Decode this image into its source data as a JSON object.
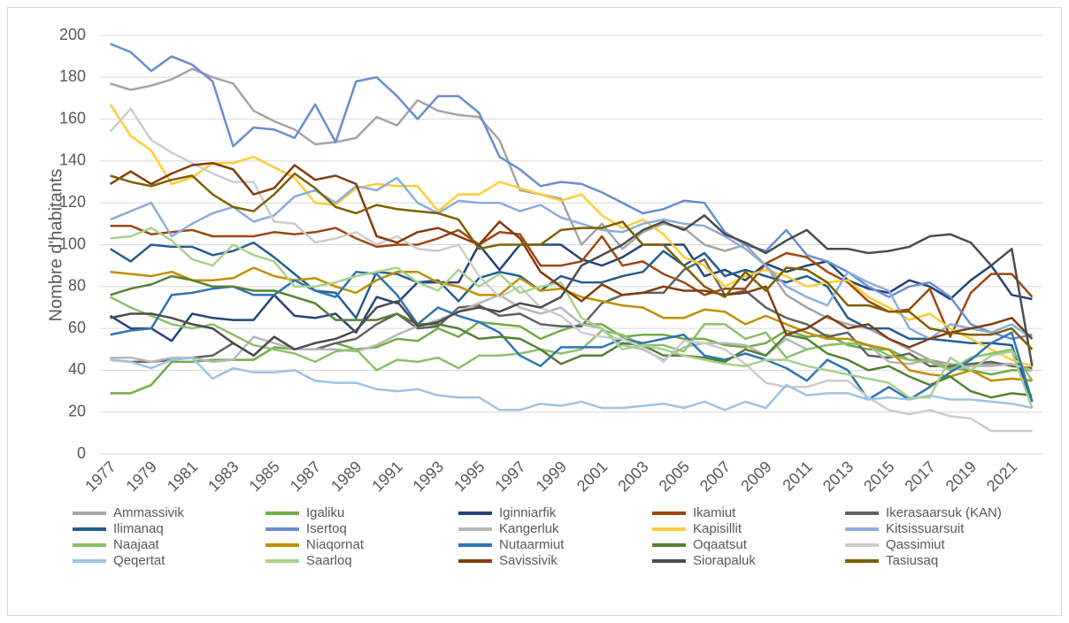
{
  "chart_data": {
    "type": "line",
    "y_label": "Nombre d'habitants",
    "categories": [
      1977,
      null,
      1979,
      null,
      1981,
      null,
      1983,
      null,
      1985,
      null,
      1987,
      null,
      1989,
      null,
      1991,
      null,
      1993,
      null,
      1995,
      null,
      1997,
      null,
      1999,
      null,
      2001,
      null,
      2003,
      null,
      2005,
      null,
      2007,
      null,
      2009,
      null,
      2011,
      null,
      2013,
      null,
      2015,
      null,
      2017,
      null,
      2019,
      null,
      2021,
      null
    ],
    "ylim": [
      0,
      200
    ],
    "yticks": [
      0,
      20,
      40,
      60,
      80,
      100,
      120,
      140,
      160,
      180,
      200
    ],
    "grid": true,
    "legend": "bottom",
    "series": [
      {
        "name": "Ammassivik",
        "color": "#a5a5a5",
        "values": [
          177,
          174,
          176,
          179,
          184,
          180,
          177,
          164,
          159,
          155,
          148,
          149,
          151,
          161,
          157,
          169,
          164,
          162,
          161,
          150,
          126,
          124,
          122,
          100,
          110,
          98,
          106,
          110,
          108,
          100,
          97,
          100,
          90,
          76,
          70,
          65,
          62,
          60,
          55,
          50,
          45,
          43,
          42,
          43,
          43,
          40
        ]
      },
      {
        "name": "Igaliku",
        "color": "#70ad47",
        "values": [
          29,
          29,
          33,
          44,
          44,
          45,
          45,
          45,
          51,
          50,
          50,
          53,
          50,
          51,
          55,
          54,
          60,
          56,
          63,
          62,
          61,
          55,
          59,
          62,
          62,
          56,
          57,
          57,
          55,
          55,
          52,
          51,
          53,
          59,
          56,
          57,
          52,
          50,
          50,
          45,
          45,
          41,
          40,
          38,
          40,
          40
        ]
      },
      {
        "name": "Iginniarfik",
        "color": "#264478",
        "values": [
          66,
          60,
          60,
          54,
          67,
          65,
          64,
          64,
          76,
          66,
          65,
          67,
          58,
          75,
          72,
          82,
          82,
          82,
          100,
          88,
          100,
          100,
          100,
          93,
          90,
          94,
          100,
          100,
          100,
          85,
          88,
          83,
          91,
          87,
          90,
          92,
          83,
          79,
          77,
          83,
          80,
          74,
          83,
          90,
          76,
          74
        ]
      },
      {
        "name": "Ikamiut",
        "color": "#9e480e",
        "values": [
          109,
          109,
          105,
          106,
          107,
          104,
          104,
          104,
          106,
          105,
          106,
          108,
          103,
          99,
          100,
          100,
          103,
          107,
          100,
          106,
          105,
          90,
          90,
          92,
          104,
          90,
          92,
          86,
          82,
          76,
          79,
          79,
          91,
          96,
          94,
          87,
          82,
          73,
          68,
          69,
          79,
          56,
          77,
          86,
          86,
          75
        ]
      },
      {
        "name": "Ikerasaarsuk (KAN)",
        "color": "#636363",
        "values": [
          45,
          44,
          44,
          45,
          46,
          47,
          53,
          47,
          56,
          50,
          50,
          53,
          55,
          62,
          67,
          60,
          61,
          70,
          71,
          66,
          67,
          62,
          61,
          61,
          72,
          76,
          77,
          77,
          88,
          93,
          76,
          78,
          70,
          65,
          62,
          56,
          58,
          47,
          46,
          48,
          42,
          42,
          43,
          44,
          42,
          41
        ]
      },
      {
        "name": "Ilimanaq",
        "color": "#255e91",
        "values": [
          98,
          92,
          100,
          99,
          99,
          95,
          97,
          101,
          94,
          86,
          78,
          77,
          65,
          87,
          86,
          82,
          83,
          73,
          84,
          87,
          85,
          78,
          85,
          82,
          82,
          85,
          87,
          97,
          90,
          96,
          85,
          88,
          85,
          82,
          85,
          80,
          65,
          60,
          60,
          55,
          55,
          54,
          53,
          53,
          52,
          25
        ]
      },
      {
        "name": "Isertoq",
        "color": "#698ed0",
        "values": [
          196,
          192,
          183,
          190,
          186,
          178,
          147,
          156,
          155,
          151,
          167,
          149,
          178,
          180,
          171,
          160,
          171,
          171,
          163,
          142,
          136,
          128,
          130,
          129,
          125,
          120,
          115,
          117,
          121,
          120,
          106,
          100,
          97,
          107,
          95,
          92,
          87,
          80,
          75,
          80,
          82,
          75,
          62,
          58,
          55,
          57
        ]
      },
      {
        "name": "Kangerluk",
        "color": "#b7b7b7",
        "values": [
          46,
          46,
          44,
          46,
          46,
          44,
          45,
          56,
          53,
          50,
          50,
          50,
          49,
          52,
          57,
          61,
          64,
          68,
          72,
          76,
          70,
          67,
          70,
          62,
          60,
          52,
          50,
          45,
          51,
          53,
          53,
          52,
          47,
          55,
          50,
          52,
          53,
          52,
          44,
          43,
          45,
          40,
          42,
          42,
          43,
          40
        ]
      },
      {
        "name": "Kapisillit",
        "color": "#ffcd33",
        "values": [
          167,
          152,
          145,
          129,
          132,
          139,
          139,
          142,
          137,
          132,
          120,
          119,
          127,
          129,
          128,
          128,
          116,
          124,
          124,
          130,
          127,
          124,
          121,
          124,
          114,
          108,
          112,
          105,
          94,
          90,
          80,
          85,
          88,
          85,
          80,
          82,
          83,
          75,
          70,
          64,
          67,
          60,
          55,
          50,
          45,
          42
        ]
      },
      {
        "name": "Kitsissuarsuit",
        "color": "#8cadde",
        "values": [
          112,
          116,
          120,
          104,
          110,
          115,
          118,
          111,
          114,
          123,
          126,
          120,
          128,
          126,
          132,
          120,
          115,
          121,
          120,
          120,
          116,
          119,
          113,
          110,
          107,
          106,
          110,
          112,
          110,
          109,
          104,
          98,
          90,
          80,
          75,
          71,
          87,
          82,
          78,
          60,
          55,
          62,
          60,
          58,
          62,
          55
        ]
      },
      {
        "name": "Naajaat",
        "color": "#8cc168",
        "values": [
          75,
          70,
          66,
          62,
          60,
          62,
          57,
          52,
          50,
          48,
          44,
          49,
          50,
          40,
          45,
          44,
          46,
          41,
          47,
          47,
          48,
          50,
          48,
          50,
          59,
          57,
          52,
          52,
          49,
          62,
          62,
          55,
          58,
          46,
          50,
          52,
          53,
          52,
          47,
          45,
          44,
          40,
          46,
          48,
          50,
          35
        ]
      },
      {
        "name": "Niaqornat",
        "color": "#bf9000",
        "values": [
          87,
          86,
          85,
          87,
          83,
          83,
          84,
          89,
          85,
          83,
          84,
          80,
          77,
          83,
          87,
          87,
          82,
          80,
          76,
          76,
          84,
          78,
          79,
          75,
          73,
          71,
          70,
          65,
          65,
          69,
          68,
          62,
          66,
          62,
          58,
          55,
          55,
          52,
          50,
          40,
          38,
          37,
          40,
          35,
          36,
          35
        ]
      },
      {
        "name": "Nutaarmiut",
        "color": "#2e75b6",
        "values": [
          57,
          59,
          60,
          76,
          77,
          79,
          80,
          76,
          76,
          83,
          78,
          75,
          87,
          86,
          76,
          62,
          70,
          66,
          63,
          58,
          47,
          42,
          51,
          51,
          51,
          55,
          53,
          55,
          57,
          47,
          45,
          48,
          45,
          41,
          35,
          45,
          40,
          26,
          32,
          26,
          32,
          39,
          45,
          53,
          58,
          25
        ]
      },
      {
        "name": "Oqaatsut",
        "color": "#548235",
        "values": [
          76,
          79,
          81,
          85,
          83,
          80,
          80,
          78,
          78,
          75,
          72,
          64,
          64,
          64,
          67,
          62,
          62,
          60,
          55,
          56,
          55,
          50,
          43,
          47,
          47,
          53,
          52,
          47,
          47,
          46,
          44,
          50,
          47,
          57,
          55,
          48,
          45,
          40,
          42,
          37,
          33,
          37,
          30,
          27,
          29,
          28
        ]
      },
      {
        "name": "Qassimiut",
        "color": "#cccccc",
        "values": [
          154,
          165,
          150,
          144,
          139,
          134,
          130,
          130,
          111,
          110,
          101,
          103,
          106,
          100,
          104,
          98,
          97,
          100,
          85,
          75,
          80,
          70,
          66,
          58,
          56,
          55,
          51,
          44,
          54,
          53,
          50,
          43,
          34,
          32,
          32,
          35,
          35,
          27,
          21,
          19,
          21,
          18,
          17,
          11,
          11,
          11
        ]
      },
      {
        "name": "Qeqertat",
        "color": "#9dc3e6",
        "values": [
          45,
          44,
          41,
          45,
          46,
          36,
          41,
          39,
          39,
          40,
          35,
          34,
          34,
          31,
          30,
          31,
          28,
          27,
          27,
          21,
          21,
          24,
          23,
          25,
          22,
          22,
          23,
          24,
          22,
          25,
          21,
          25,
          22,
          33,
          28,
          29,
          29,
          26,
          27,
          26,
          28,
          26,
          26,
          25,
          24,
          22
        ]
      },
      {
        "name": "Saarloq",
        "color": "#a9d18e",
        "values": [
          103,
          104,
          108,
          102,
          93,
          90,
          100,
          95,
          92,
          80,
          80,
          82,
          85,
          87,
          89,
          82,
          78,
          88,
          80,
          86,
          77,
          80,
          82,
          65,
          60,
          50,
          52,
          50,
          47,
          45,
          43,
          42,
          45,
          45,
          42,
          40,
          38,
          36,
          34,
          27,
          27,
          46,
          40,
          47,
          49,
          22
        ]
      },
      {
        "name": "Savissivik",
        "color": "#843c0c",
        "values": [
          129,
          135,
          129,
          134,
          138,
          139,
          136,
          124,
          127,
          138,
          131,
          133,
          129,
          104,
          101,
          106,
          108,
          104,
          100,
          111,
          103,
          87,
          80,
          73,
          81,
          76,
          77,
          80,
          78,
          78,
          76,
          77,
          80,
          57,
          60,
          66,
          60,
          62,
          55,
          51,
          55,
          58,
          60,
          62,
          65,
          55
        ]
      },
      {
        "name": "Siorapaluk",
        "color": "#4d4d4d",
        "values": [
          65,
          67,
          67,
          65,
          62,
          60,
          53,
          47,
          56,
          50,
          53,
          55,
          59,
          70,
          73,
          61,
          63,
          68,
          70,
          68,
          72,
          70,
          75,
          90,
          95,
          100,
          107,
          111,
          107,
          114,
          105,
          101,
          96,
          102,
          107,
          98,
          98,
          96,
          97,
          99,
          104,
          105,
          101,
          90,
          98,
          42
        ]
      },
      {
        "name": "Tasiusaq",
        "color": "#7f6000",
        "values": [
          133,
          130,
          128,
          131,
          133,
          124,
          118,
          116,
          124,
          134,
          127,
          118,
          115,
          119,
          117,
          116,
          115,
          112,
          98,
          100,
          100,
          100,
          107,
          108,
          108,
          111,
          100,
          100,
          90,
          80,
          75,
          87,
          78,
          89,
          88,
          82,
          71,
          71,
          68,
          68,
          60,
          58,
          57,
          57,
          60,
          50
        ]
      }
    ]
  }
}
